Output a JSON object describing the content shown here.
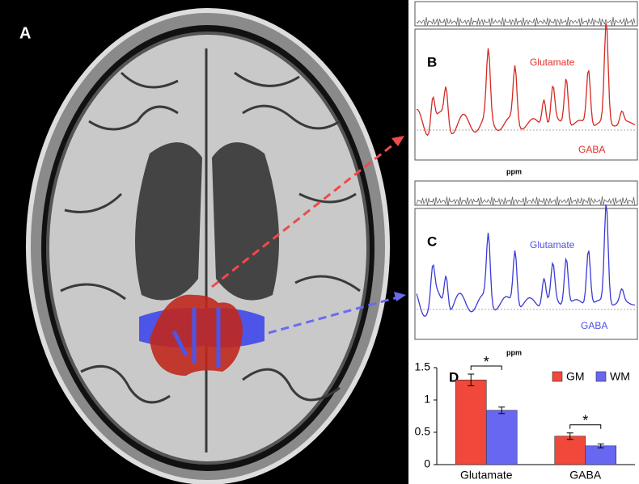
{
  "panels": {
    "a": {
      "label": "A"
    },
    "b": {
      "label": "B",
      "glutamate": "Glutamate",
      "gaba": "GABA",
      "x_label": "ppm"
    },
    "c": {
      "label": "C",
      "glutamate": "Glutamate",
      "gaba": "GABA",
      "x_label": "ppm"
    }
  },
  "chart_data": {
    "type": "bar",
    "panel_label": "D",
    "categories": [
      "Glutamate",
      "GABA"
    ],
    "series": [
      {
        "name": "GM",
        "color": "#f0483a",
        "values": [
          1.31,
          0.44
        ],
        "errors": [
          0.09,
          0.05
        ]
      },
      {
        "name": "WM",
        "color": "#6767f2",
        "values": [
          0.84,
          0.29
        ],
        "errors": [
          0.05,
          0.03
        ]
      }
    ],
    "annotations": [
      "*",
      "*"
    ],
    "ylim": [
      0,
      1.5
    ],
    "yticks": [
      0,
      0.5,
      1,
      1.5
    ],
    "grid": false,
    "legend": "top-right"
  }
}
